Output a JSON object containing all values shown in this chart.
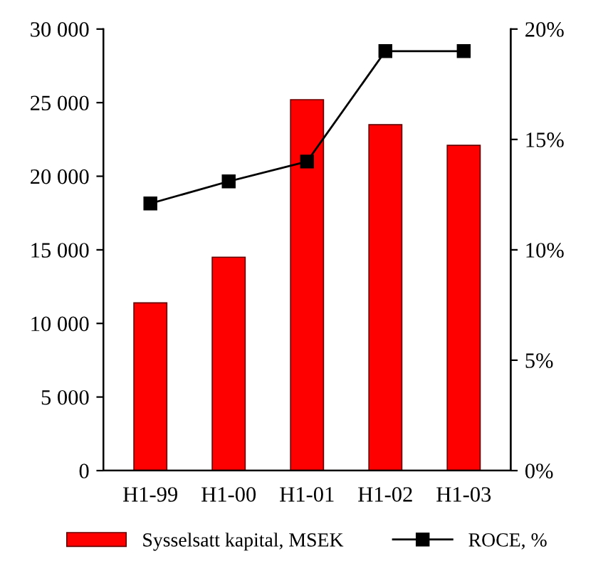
{
  "chart_data": {
    "type": "bar",
    "categories": [
      "H1-99",
      "H1-00",
      "H1-01",
      "H1-02",
      "H1-03"
    ],
    "series": [
      {
        "name": "Sysselsatt kapital, MSEK",
        "color": "#ff0000",
        "values": [
          11400,
          14500,
          25200,
          23500,
          22100
        ]
      },
      {
        "name": "ROCE, %",
        "type": "line",
        "axis": "y2",
        "color": "#000000",
        "marker": "square",
        "values": [
          12.1,
          13.1,
          14.0,
          19.0,
          19.0
        ]
      }
    ],
    "ylim": [
      0,
      30000
    ],
    "yticks": [
      0,
      {
        "value": 5000,
        "label": "5 000"
      },
      {
        "value": 10000,
        "label": "10 000"
      },
      {
        "value": 15000,
        "label": "15 000"
      },
      {
        "value": 20000,
        "label": "20 000"
      },
      {
        "value": 25000,
        "label": "25 000"
      },
      {
        "value": 30000,
        "label": "30 000"
      }
    ],
    "y2lim": [
      0,
      20
    ],
    "y2ticks": [
      {
        "value": 0,
        "label": "0%"
      },
      {
        "value": 5,
        "label": "5%"
      },
      {
        "value": 10,
        "label": "10%"
      },
      {
        "value": 15,
        "label": "15%"
      },
      {
        "value": 20,
        "label": "20%"
      }
    ],
    "legend": "bottom",
    "grid": false
  }
}
